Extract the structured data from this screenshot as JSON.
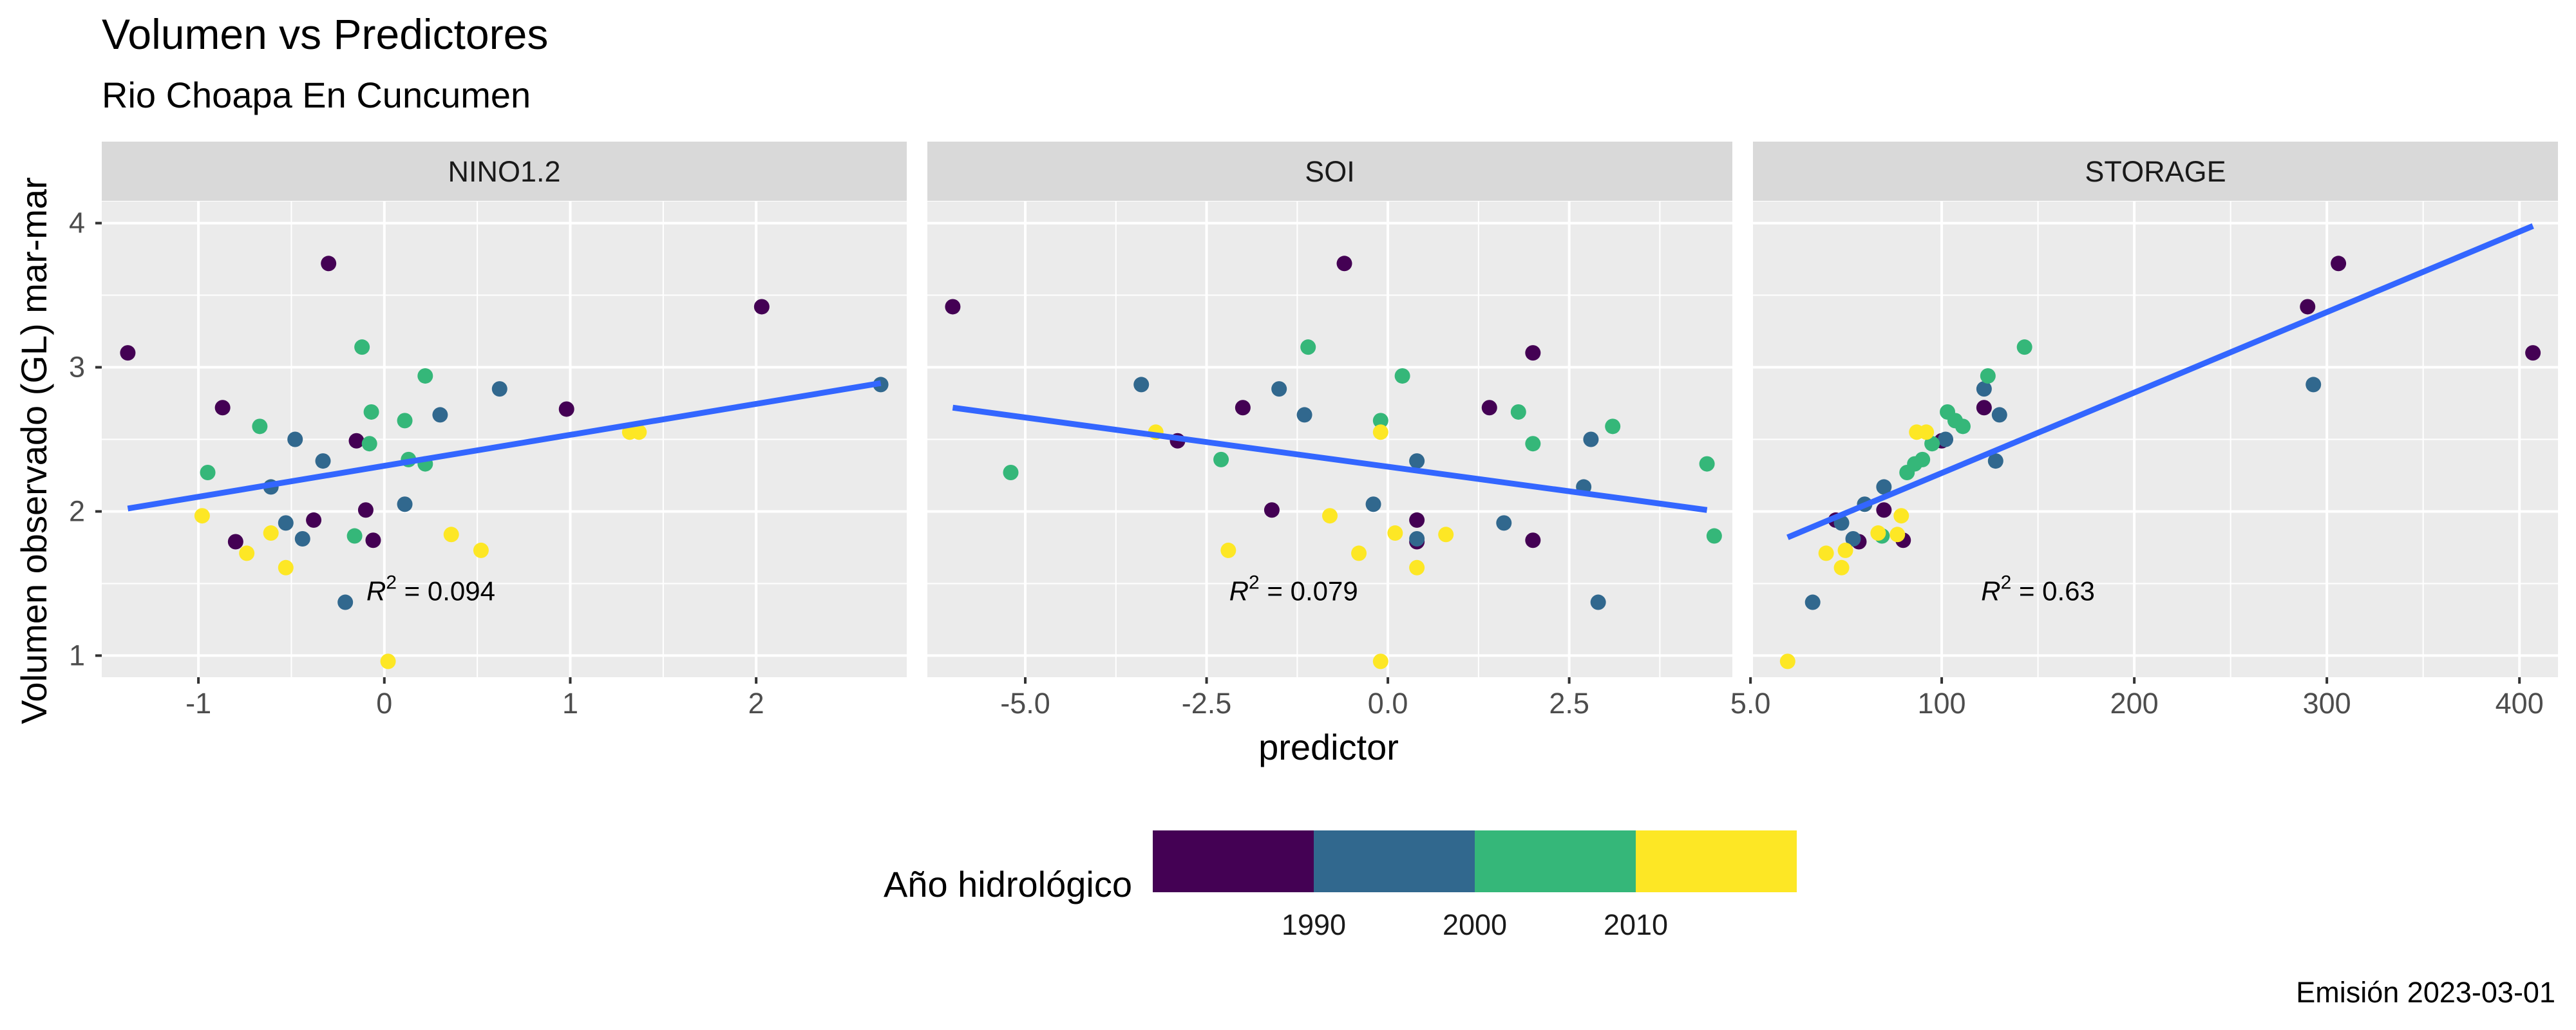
{
  "chart_data": {
    "type": "scatter",
    "title": "Volumen vs Predictores",
    "subtitle": "Rio Choapa En Cuncumen",
    "xlabel": "predictor",
    "ylabel": "Volumen observado (GL) mar-mar",
    "caption": "Emisión 2023-03-01",
    "ylim": [
      0.85,
      4.15
    ],
    "yticks": [
      1,
      2,
      3,
      4
    ],
    "grid": true,
    "legend": {
      "title": "Año hidrológico",
      "position": "bottom",
      "ticks": [
        "1990",
        "2000",
        "2010"
      ],
      "colors": [
        "#440154",
        "#31688e",
        "#35b779",
        "#fde725"
      ]
    },
    "fit_color": "#3366ff",
    "panels": [
      {
        "name": "NINO1.2",
        "xlim": [
          -1.52,
          2.81
        ],
        "xticks": [
          -1,
          0,
          1,
          2
        ],
        "xtick_labels": [
          "-1",
          "0",
          "1",
          "2"
        ],
        "annotation": "R² = 0.094",
        "r2": "0.094",
        "annotation_pos": [
          0.25,
          1.45
        ],
        "fit": [
          [
            -1.38,
            2.02
          ],
          [
            2.67,
            2.89
          ]
        ],
        "points": [
          {
            "x": -1.38,
            "y": 3.1,
            "c": 0
          },
          {
            "x": -0.87,
            "y": 2.72,
            "c": 0
          },
          {
            "x": -0.8,
            "y": 1.79,
            "c": 0
          },
          {
            "x": -0.3,
            "y": 3.72,
            "c": 0
          },
          {
            "x": -0.15,
            "y": 2.49,
            "c": 0
          },
          {
            "x": -0.1,
            "y": 2.01,
            "c": 0
          },
          {
            "x": -0.06,
            "y": 1.8,
            "c": 0
          },
          {
            "x": -0.38,
            "y": 1.94,
            "c": 0
          },
          {
            "x": 0.98,
            "y": 2.71,
            "c": 0
          },
          {
            "x": 2.03,
            "y": 3.42,
            "c": 0
          },
          {
            "x": -0.61,
            "y": 2.17,
            "c": 1
          },
          {
            "x": -0.48,
            "y": 2.5,
            "c": 1
          },
          {
            "x": -0.33,
            "y": 2.35,
            "c": 1
          },
          {
            "x": -0.44,
            "y": 1.81,
            "c": 1
          },
          {
            "x": -0.53,
            "y": 1.92,
            "c": 1
          },
          {
            "x": -0.21,
            "y": 1.37,
            "c": 1
          },
          {
            "x": 0.11,
            "y": 2.05,
            "c": 1
          },
          {
            "x": 0.3,
            "y": 2.67,
            "c": 1
          },
          {
            "x": 0.62,
            "y": 2.85,
            "c": 1
          },
          {
            "x": 2.67,
            "y": 2.88,
            "c": 1
          },
          {
            "x": -0.95,
            "y": 2.27,
            "c": 2
          },
          {
            "x": -0.67,
            "y": 2.59,
            "c": 2
          },
          {
            "x": -0.12,
            "y": 3.14,
            "c": 2
          },
          {
            "x": -0.07,
            "y": 2.69,
            "c": 2
          },
          {
            "x": -0.08,
            "y": 2.47,
            "c": 2
          },
          {
            "x": -0.16,
            "y": 1.83,
            "c": 2
          },
          {
            "x": 0.11,
            "y": 2.63,
            "c": 2
          },
          {
            "x": 0.13,
            "y": 2.36,
            "c": 2
          },
          {
            "x": 0.22,
            "y": 2.94,
            "c": 2
          },
          {
            "x": 0.22,
            "y": 2.33,
            "c": 2
          },
          {
            "x": -0.98,
            "y": 1.97,
            "c": 3
          },
          {
            "x": -0.74,
            "y": 1.71,
            "c": 3
          },
          {
            "x": -0.61,
            "y": 1.85,
            "c": 3
          },
          {
            "x": -0.53,
            "y": 1.61,
            "c": 3
          },
          {
            "x": 0.02,
            "y": 0.96,
            "c": 3
          },
          {
            "x": 0.36,
            "y": 1.84,
            "c": 3
          },
          {
            "x": 0.52,
            "y": 1.73,
            "c": 3
          },
          {
            "x": 1.32,
            "y": 2.55,
            "c": 3
          },
          {
            "x": 1.37,
            "y": 2.55,
            "c": 3
          }
        ]
      },
      {
        "name": "SOI",
        "xlim": [
          -6.35,
          4.75
        ],
        "xticks": [
          -5,
          -2.5,
          0,
          2.5,
          5
        ],
        "xtick_labels": [
          "-5.0",
          "-2.5",
          "0.0",
          "2.5",
          "5.0"
        ],
        "annotation": "R² = 0.079",
        "r2": "0.079",
        "annotation_pos": [
          -1.3,
          1.45
        ],
        "fit": [
          [
            -6.0,
            2.72
          ],
          [
            4.4,
            2.01
          ]
        ],
        "points": [
          {
            "x": -6.0,
            "y": 3.42,
            "c": 0
          },
          {
            "x": -0.6,
            "y": 3.72,
            "c": 0
          },
          {
            "x": -2.9,
            "y": 2.49,
            "c": 0
          },
          {
            "x": -2.0,
            "y": 2.72,
            "c": 0
          },
          {
            "x": -1.6,
            "y": 2.01,
            "c": 0
          },
          {
            "x": 0.4,
            "y": 1.94,
            "c": 0
          },
          {
            "x": 0.4,
            "y": 1.79,
            "c": 0
          },
          {
            "x": 1.4,
            "y": 2.72,
            "c": 0
          },
          {
            "x": 2.0,
            "y": 3.1,
            "c": 0
          },
          {
            "x": 2.0,
            "y": 1.8,
            "c": 0
          },
          {
            "x": -3.4,
            "y": 2.88,
            "c": 1
          },
          {
            "x": -1.5,
            "y": 2.85,
            "c": 1
          },
          {
            "x": -1.15,
            "y": 2.67,
            "c": 1
          },
          {
            "x": -0.2,
            "y": 2.05,
            "c": 1
          },
          {
            "x": 0.4,
            "y": 2.35,
            "c": 1
          },
          {
            "x": 0.4,
            "y": 1.81,
            "c": 1
          },
          {
            "x": 1.6,
            "y": 1.92,
            "c": 1
          },
          {
            "x": 2.7,
            "y": 2.17,
            "c": 1
          },
          {
            "x": 2.8,
            "y": 2.5,
            "c": 1
          },
          {
            "x": 2.9,
            "y": 1.37,
            "c": 1
          },
          {
            "x": -5.2,
            "y": 2.27,
            "c": 2
          },
          {
            "x": -2.3,
            "y": 2.36,
            "c": 2
          },
          {
            "x": -1.1,
            "y": 3.14,
            "c": 2
          },
          {
            "x": -0.1,
            "y": 2.63,
            "c": 2
          },
          {
            "x": 0.2,
            "y": 2.94,
            "c": 2
          },
          {
            "x": 1.8,
            "y": 2.69,
            "c": 2
          },
          {
            "x": 2.0,
            "y": 2.47,
            "c": 2
          },
          {
            "x": 3.1,
            "y": 2.59,
            "c": 2
          },
          {
            "x": 4.4,
            "y": 2.33,
            "c": 2
          },
          {
            "x": 4.5,
            "y": 1.83,
            "c": 2
          },
          {
            "x": -3.2,
            "y": 2.55,
            "c": 3
          },
          {
            "x": -2.2,
            "y": 1.73,
            "c": 3
          },
          {
            "x": -0.8,
            "y": 1.97,
            "c": 3
          },
          {
            "x": -0.4,
            "y": 1.71,
            "c": 3
          },
          {
            "x": -0.1,
            "y": 2.55,
            "c": 3
          },
          {
            "x": -0.1,
            "y": 0.96,
            "c": 3
          },
          {
            "x": 0.1,
            "y": 1.85,
            "c": 3
          },
          {
            "x": 0.4,
            "y": 1.61,
            "c": 3
          },
          {
            "x": 0.8,
            "y": 1.84,
            "c": 3
          }
        ]
      },
      {
        "name": "STORAGE",
        "xlim": [
          2,
          420
        ],
        "xticks": [
          100,
          200,
          300,
          400
        ],
        "xtick_labels": [
          "100",
          "200",
          "300",
          "400"
        ],
        "annotation": "R² = 0.63",
        "r2": "0.63",
        "annotation_pos": [
          150,
          1.45
        ],
        "fit": [
          [
            20,
            1.82
          ],
          [
            407,
            3.98
          ]
        ],
        "points": [
          {
            "x": 407,
            "y": 3.1,
            "c": 0
          },
          {
            "x": 306,
            "y": 3.72,
            "c": 0
          },
          {
            "x": 290,
            "y": 3.42,
            "c": 0
          },
          {
            "x": 122,
            "y": 2.72,
            "c": 0
          },
          {
            "x": 70,
            "y": 2.01,
            "c": 0
          },
          {
            "x": 45,
            "y": 1.94,
            "c": 0
          },
          {
            "x": 57,
            "y": 1.79,
            "c": 0
          },
          {
            "x": 80,
            "y": 1.8,
            "c": 0
          },
          {
            "x": 100,
            "y": 2.49,
            "c": 0
          },
          {
            "x": 293,
            "y": 2.88,
            "c": 1
          },
          {
            "x": 128,
            "y": 2.35,
            "c": 1
          },
          {
            "x": 130,
            "y": 2.67,
            "c": 1
          },
          {
            "x": 122,
            "y": 2.85,
            "c": 1
          },
          {
            "x": 102,
            "y": 2.5,
            "c": 1
          },
          {
            "x": 70,
            "y": 2.17,
            "c": 1
          },
          {
            "x": 60,
            "y": 2.05,
            "c": 1
          },
          {
            "x": 48,
            "y": 1.92,
            "c": 1
          },
          {
            "x": 54,
            "y": 1.81,
            "c": 1
          },
          {
            "x": 33,
            "y": 1.37,
            "c": 1
          },
          {
            "x": 143,
            "y": 3.14,
            "c": 2
          },
          {
            "x": 124,
            "y": 2.94,
            "c": 2
          },
          {
            "x": 103,
            "y": 2.69,
            "c": 2
          },
          {
            "x": 107,
            "y": 2.63,
            "c": 2
          },
          {
            "x": 111,
            "y": 2.59,
            "c": 2
          },
          {
            "x": 95,
            "y": 2.47,
            "c": 2
          },
          {
            "x": 90,
            "y": 2.36,
            "c": 2
          },
          {
            "x": 86,
            "y": 2.33,
            "c": 2
          },
          {
            "x": 82,
            "y": 2.27,
            "c": 2
          },
          {
            "x": 69,
            "y": 1.83,
            "c": 2
          },
          {
            "x": 92,
            "y": 2.55,
            "c": 3
          },
          {
            "x": 87,
            "y": 2.55,
            "c": 3
          },
          {
            "x": 79,
            "y": 1.97,
            "c": 3
          },
          {
            "x": 77,
            "y": 1.84,
            "c": 3
          },
          {
            "x": 67,
            "y": 1.85,
            "c": 3
          },
          {
            "x": 50,
            "y": 1.73,
            "c": 3
          },
          {
            "x": 40,
            "y": 1.71,
            "c": 3
          },
          {
            "x": 48,
            "y": 1.61,
            "c": 3
          },
          {
            "x": 20,
            "y": 0.96,
            "c": 3
          }
        ]
      }
    ]
  }
}
